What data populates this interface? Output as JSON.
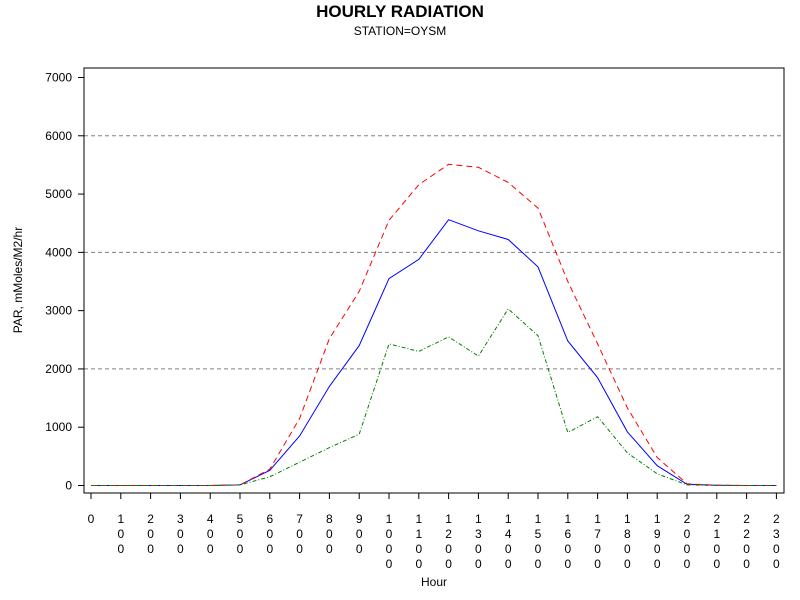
{
  "chart_data": {
    "type": "line",
    "title": "HOURLY RADIATION",
    "subtitle": "STATION=OYSM",
    "xlabel": "Hour",
    "ylabel": "PAR, mMoles/M2/hr",
    "ylim": [
      0,
      7000
    ],
    "yticks": [
      0,
      1000,
      2000,
      3000,
      4000,
      5000,
      6000,
      7000
    ],
    "grid_y": [
      2000,
      4000,
      6000
    ],
    "x": [
      0,
      100,
      200,
      300,
      400,
      500,
      600,
      700,
      800,
      900,
      1000,
      1100,
      1200,
      1300,
      1400,
      1500,
      1600,
      1700,
      1800,
      1900,
      2000,
      2100,
      2200,
      2300
    ],
    "series": [
      {
        "color": "#0000ff",
        "style": "solid",
        "values": [
          0,
          0,
          0,
          0,
          0,
          10,
          260,
          850,
          1700,
          2400,
          3550,
          3880,
          4560,
          4370,
          4220,
          3750,
          2480,
          1850,
          920,
          340,
          20,
          5,
          0,
          0
        ]
      },
      {
        "color": "#ff0000",
        "style": "dashed",
        "values": [
          0,
          0,
          0,
          0,
          0,
          10,
          280,
          1150,
          2520,
          3330,
          4550,
          5160,
          5510,
          5460,
          5200,
          4760,
          3500,
          2430,
          1330,
          480,
          30,
          5,
          0,
          0
        ]
      },
      {
        "color": "#008000",
        "style": "dotdash",
        "values": [
          0,
          0,
          0,
          0,
          0,
          10,
          150,
          400,
          650,
          880,
          2430,
          2300,
          2550,
          2220,
          3030,
          2570,
          910,
          1180,
          560,
          200,
          10,
          0,
          0,
          0
        ]
      }
    ],
    "xtick_labels": [
      "0",
      "1\n0\n0",
      "2\n0\n0",
      "3\n0\n0",
      "4\n0\n0",
      "5\n0\n0",
      "6\n0\n0",
      "7\n0\n0",
      "8\n0\n0",
      "9\n0\n0",
      "1\n0\n0\n0",
      "1\n1\n0\n0",
      "1\n2\n0\n0",
      "1\n3\n0\n0",
      "1\n4\n0\n0",
      "1\n5\n0\n0",
      "1\n6\n0\n0",
      "1\n7\n0\n0",
      "1\n8\n0\n0",
      "1\n9\n0\n0",
      "2\n0\n0\n0",
      "2\n1\n0\n0",
      "2\n2\n0\n0",
      "2\n3\n0\n0"
    ]
  }
}
